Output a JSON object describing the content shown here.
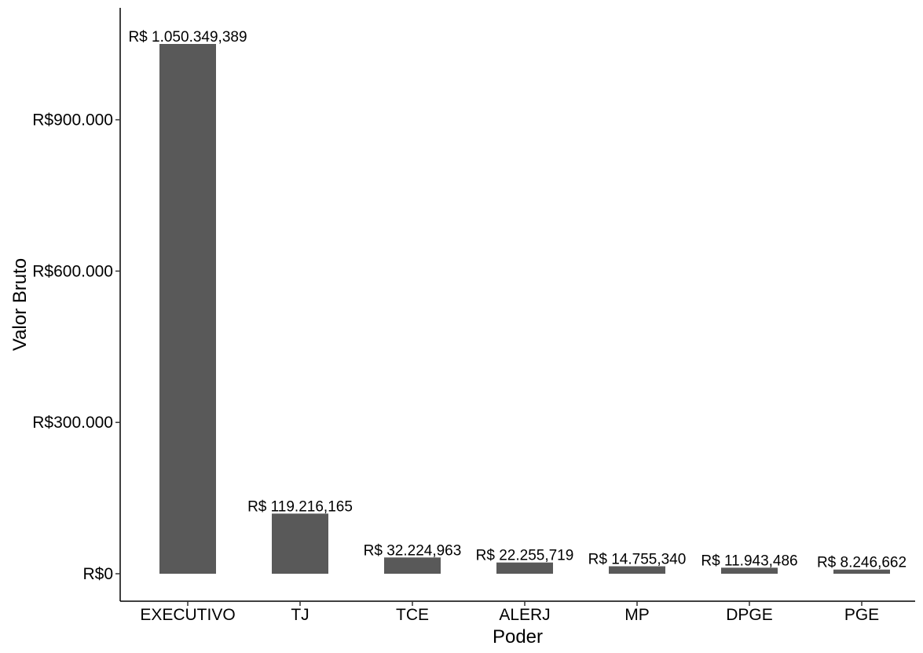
{
  "chart_data": {
    "type": "bar",
    "title": "",
    "xlabel": "Poder",
    "ylabel": "Valor Bruto",
    "categories": [
      "EXECUTIVO",
      "TJ",
      "TCE",
      "ALERJ",
      "MP",
      "DPGE",
      "PGE"
    ],
    "values": [
      1050349.389,
      119216.165,
      32224.963,
      22255.719,
      14755.34,
      11943.486,
      8246.662
    ],
    "data_labels": [
      "R$ 1.050.349,389",
      "R$ 119.216,165",
      "R$ 32.224,963",
      "R$ 22.255,719",
      "R$ 14.755,340",
      "R$ 11.943,486",
      "R$ 8.246,662"
    ],
    "yticks": [
      0,
      300000,
      600000,
      900000
    ],
    "ytick_labels": [
      "R$0",
      "R$300.000",
      "R$600.000",
      "R$900.000"
    ],
    "ylim": [
      0,
      1100000
    ],
    "grid": false,
    "legend": "none",
    "bar_color": "#595959"
  }
}
